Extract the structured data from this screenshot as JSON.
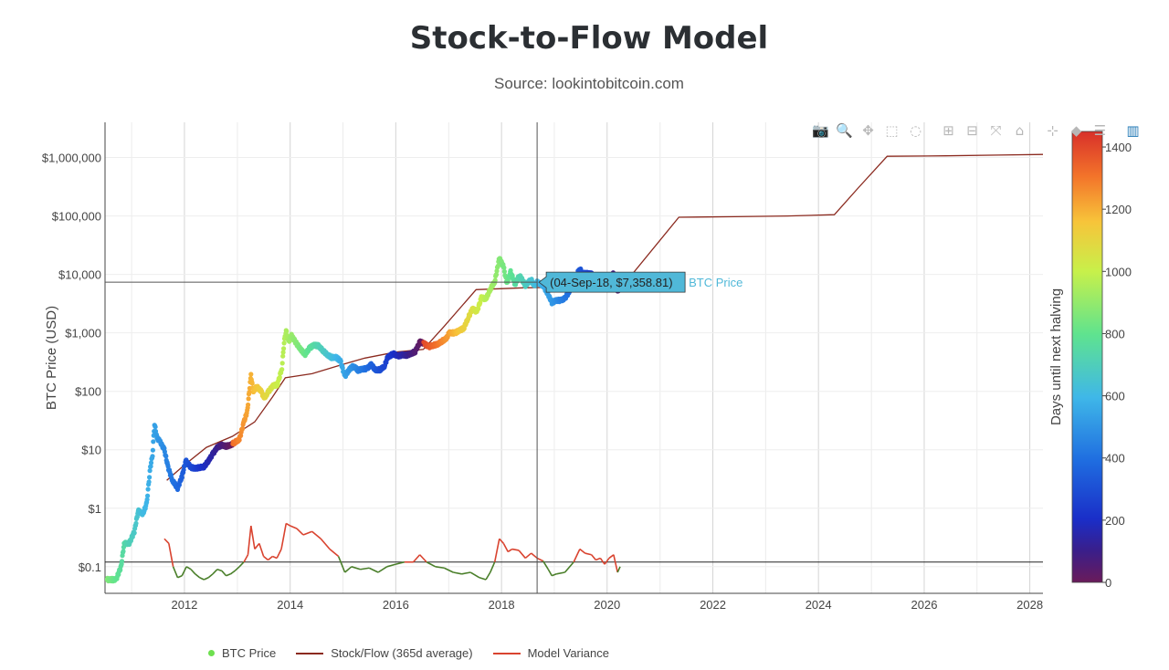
{
  "header": {
    "title": "Stock-to-Flow Model",
    "subtitle": "Source: lookintobitcoin.com"
  },
  "toolbar": [
    {
      "icon": "camera-icon",
      "label": "Download plot as png",
      "glyph": "📷"
    },
    {
      "icon": "zoom-icon",
      "label": "Zoom",
      "glyph": "🔍"
    },
    {
      "icon": "pan-icon",
      "label": "Pan",
      "glyph": "✥"
    },
    {
      "icon": "box-select-icon",
      "label": "Box Select",
      "glyph": "⬚"
    },
    {
      "icon": "lasso-select-icon",
      "label": "Lasso Select",
      "glyph": "◌"
    },
    {
      "icon": "zoom-in-icon",
      "label": "Zoom in",
      "glyph": "⊞"
    },
    {
      "icon": "zoom-out-icon",
      "label": "Zoom out",
      "glyph": "⊟"
    },
    {
      "icon": "autoscale-icon",
      "label": "Autoscale",
      "glyph": "⤧"
    },
    {
      "icon": "home-icon",
      "label": "Reset axes",
      "glyph": "⌂"
    },
    {
      "icon": "spike-lines-icon",
      "label": "Toggle Spike Lines",
      "glyph": "⊹"
    },
    {
      "icon": "hover-closest-icon",
      "label": "Show closest data on hover",
      "glyph": "◆"
    },
    {
      "icon": "hover-compare-icon",
      "label": "Compare data on hover",
      "glyph": "☰"
    },
    {
      "icon": "plotly-logo-icon",
      "label": "Produced with Plotly",
      "glyph": "▥"
    }
  ],
  "hover": {
    "text": "(04-Sep-18, $7,358.81)",
    "series_label": "BTC Price",
    "date": "2018-09-04",
    "value": 7358.81
  },
  "colors": {
    "model_line": "#8b2a1f",
    "variance_high": "#d9432f",
    "variance_low": "#4a7f2a",
    "hover_box": "#50b8d8",
    "crosshair": "#555555"
  },
  "chart_data": {
    "type": "scatter",
    "title": "Stock-to-Flow Model",
    "subtitle": "Source: lookintobitcoin.com",
    "xlabel": "",
    "ylabel": "BTC Price (USD)",
    "yscale": "log",
    "xlim": [
      "2010-07-01",
      "2028-04-01"
    ],
    "ylim": [
      0.035,
      4000000
    ],
    "x_ticks": [
      "2012",
      "2014",
      "2016",
      "2018",
      "2020",
      "2022",
      "2024",
      "2026",
      "2028"
    ],
    "y_ticks": [
      {
        "value": 1000000,
        "label": "$1,000,000"
      },
      {
        "value": 100000,
        "label": "$100,000"
      },
      {
        "value": 10000,
        "label": "$10,000"
      },
      {
        "value": 1000,
        "label": "$1,000"
      },
      {
        "value": 100,
        "label": "$100"
      },
      {
        "value": 10,
        "label": "$10"
      },
      {
        "value": 1,
        "label": "$1"
      },
      {
        "value": 0.1,
        "label": "$0.1"
      }
    ],
    "colorbar": {
      "title": "Days until next halving",
      "range": [
        0,
        1450
      ],
      "ticks": [
        0,
        200,
        400,
        600,
        800,
        1000,
        1200,
        1400
      ]
    },
    "variance_baseline": 0.12,
    "legend": [
      "BTC Price",
      "Stock/Flow (365d average)",
      "Model Variance"
    ],
    "legend_position": "bottom",
    "grid": true,
    "series": [
      {
        "name": "BTC Price",
        "kind": "markers",
        "color_by": "Days until next halving",
        "halvings": [
          "2012-11-28",
          "2016-07-09",
          "2020-05-11"
        ],
        "points": [
          [
            "2010-07-15",
            0.06
          ],
          [
            "2010-09-15",
            0.06
          ],
          [
            "2010-10-20",
            0.1
          ],
          [
            "2010-11-10",
            0.25
          ],
          [
            "2010-12-15",
            0.25
          ],
          [
            "2011-01-20",
            0.4
          ],
          [
            "2011-02-15",
            0.9
          ],
          [
            "2011-03-20",
            0.8
          ],
          [
            "2011-04-15",
            1.2
          ],
          [
            "2011-05-10",
            5
          ],
          [
            "2011-05-25",
            8
          ],
          [
            "2011-06-08",
            28
          ],
          [
            "2011-06-25",
            16
          ],
          [
            "2011-07-15",
            14
          ],
          [
            "2011-08-15",
            10
          ],
          [
            "2011-09-10",
            5
          ],
          [
            "2011-10-10",
            3
          ],
          [
            "2011-11-15",
            2.2
          ],
          [
            "2011-12-15",
            3.5
          ],
          [
            "2012-01-10",
            6.5
          ],
          [
            "2012-02-15",
            5
          ],
          [
            "2012-03-15",
            4.8
          ],
          [
            "2012-04-15",
            5
          ],
          [
            "2012-05-15",
            5.1
          ],
          [
            "2012-06-15",
            6.5
          ],
          [
            "2012-07-15",
            8.5
          ],
          [
            "2012-08-15",
            11
          ],
          [
            "2012-09-15",
            12
          ],
          [
            "2012-10-15",
            11.5
          ],
          [
            "2012-11-15",
            12
          ],
          [
            "2012-12-15",
            13.5
          ],
          [
            "2013-01-15",
            15
          ],
          [
            "2013-02-15",
            30
          ],
          [
            "2013-03-10",
            45
          ],
          [
            "2013-04-05",
            190
          ],
          [
            "2013-04-20",
            100
          ],
          [
            "2013-05-15",
            120
          ],
          [
            "2013-06-15",
            100
          ],
          [
            "2013-07-05",
            75
          ],
          [
            "2013-08-05",
            100
          ],
          [
            "2013-09-05",
            125
          ],
          [
            "2013-10-05",
            130
          ],
          [
            "2013-11-05",
            250
          ],
          [
            "2013-11-20",
            700
          ],
          [
            "2013-12-04",
            1100
          ],
          [
            "2013-12-20",
            700
          ],
          [
            "2014-01-10",
            900
          ],
          [
            "2014-02-15",
            650
          ],
          [
            "2014-03-20",
            500
          ],
          [
            "2014-04-15",
            430
          ],
          [
            "2014-05-15",
            550
          ],
          [
            "2014-06-15",
            620
          ],
          [
            "2014-07-15",
            600
          ],
          [
            "2014-08-15",
            500
          ],
          [
            "2014-09-15",
            420
          ],
          [
            "2014-10-15",
            380
          ],
          [
            "2014-11-15",
            380
          ],
          [
            "2014-12-15",
            330
          ],
          [
            "2015-01-14",
            180
          ],
          [
            "2015-02-15",
            240
          ],
          [
            "2015-03-15",
            270
          ],
          [
            "2015-04-15",
            230
          ],
          [
            "2015-05-15",
            240
          ],
          [
            "2015-06-15",
            245
          ],
          [
            "2015-07-15",
            285
          ],
          [
            "2015-08-15",
            230
          ],
          [
            "2015-09-15",
            235
          ],
          [
            "2015-10-15",
            270
          ],
          [
            "2015-11-05",
            380
          ],
          [
            "2015-12-15",
            440
          ],
          [
            "2016-01-15",
            400
          ],
          [
            "2016-02-15",
            420
          ],
          [
            "2016-03-15",
            415
          ],
          [
            "2016-04-15",
            440
          ],
          [
            "2016-05-15",
            480
          ],
          [
            "2016-06-15",
            700
          ],
          [
            "2016-07-15",
            660
          ],
          [
            "2016-08-15",
            580
          ],
          [
            "2016-09-15",
            610
          ],
          [
            "2016-10-15",
            640
          ],
          [
            "2016-11-15",
            720
          ],
          [
            "2016-12-15",
            800
          ],
          [
            "2017-01-05",
            1000
          ],
          [
            "2017-02-15",
            1000
          ],
          [
            "2017-03-15",
            1100
          ],
          [
            "2017-04-15",
            1200
          ],
          [
            "2017-05-15",
            1800
          ],
          [
            "2017-06-15",
            2600
          ],
          [
            "2017-07-15",
            2300
          ],
          [
            "2017-08-15",
            4000
          ],
          [
            "2017-09-15",
            3800
          ],
          [
            "2017-10-15",
            5600
          ],
          [
            "2017-11-15",
            7500
          ],
          [
            "2017-12-17",
            19000
          ],
          [
            "2018-01-15",
            13500
          ],
          [
            "2018-02-06",
            7000
          ],
          [
            "2018-03-05",
            11000
          ],
          [
            "2018-04-05",
            6800
          ],
          [
            "2018-05-05",
            9700
          ],
          [
            "2018-06-15",
            6500
          ],
          [
            "2018-07-25",
            8200
          ],
          [
            "2018-08-15",
            6300
          ],
          [
            "2018-09-04",
            7358.81
          ],
          [
            "2018-10-15",
            6500
          ],
          [
            "2018-11-20",
            4500
          ],
          [
            "2018-12-15",
            3300
          ],
          [
            "2019-01-15",
            3600
          ],
          [
            "2019-02-15",
            3600
          ],
          [
            "2019-03-15",
            3900
          ],
          [
            "2019-04-15",
            5100
          ],
          [
            "2019-05-15",
            7800
          ],
          [
            "2019-06-26",
            12500
          ],
          [
            "2019-07-15",
            10500
          ],
          [
            "2019-08-15",
            10300
          ],
          [
            "2019-09-15",
            10200
          ],
          [
            "2019-10-15",
            8300
          ],
          [
            "2019-11-15",
            8600
          ],
          [
            "2019-12-15",
            7100
          ],
          [
            "2020-01-15",
            8800
          ],
          [
            "2020-02-15",
            10300
          ],
          [
            "2020-03-13",
            5000
          ],
          [
            "2020-03-31",
            6400
          ]
        ]
      },
      {
        "name": "Stock/Flow (365d average)",
        "kind": "line",
        "points": [
          [
            "2011-09-01",
            3
          ],
          [
            "2012-01-01",
            5.5
          ],
          [
            "2012-06-01",
            11
          ],
          [
            "2012-11-28",
            17
          ],
          [
            "2013-05-01",
            30
          ],
          [
            "2013-09-01",
            80
          ],
          [
            "2013-11-28",
            170
          ],
          [
            "2014-06-01",
            200
          ],
          [
            "2015-01-01",
            290
          ],
          [
            "2015-06-01",
            370
          ],
          [
            "2016-01-01",
            470
          ],
          [
            "2016-07-09",
            520
          ],
          [
            "2016-12-01",
            1300
          ],
          [
            "2017-07-09",
            5500
          ],
          [
            "2018-06-01",
            5900
          ],
          [
            "2019-06-01",
            6100
          ],
          [
            "2020-05-11",
            7500
          ],
          [
            "2021-05-11",
            95000
          ],
          [
            "2022-06-01",
            97000
          ],
          [
            "2023-06-01",
            100000
          ],
          [
            "2024-04-20",
            105000
          ],
          [
            "2024-10-01",
            300000
          ],
          [
            "2025-04-20",
            1050000
          ],
          [
            "2026-06-01",
            1070000
          ],
          [
            "2027-06-01",
            1100000
          ],
          [
            "2028-04-01",
            1130000
          ]
        ]
      },
      {
        "name": "Model Variance",
        "kind": "line",
        "baseline": 0.12,
        "points": [
          [
            "2011-08-15",
            0.3
          ],
          [
            "2011-09-15",
            0.25
          ],
          [
            "2011-10-15",
            0.1
          ],
          [
            "2011-11-15",
            0.065
          ],
          [
            "2011-12-15",
            0.07
          ],
          [
            "2012-01-15",
            0.1
          ],
          [
            "2012-02-15",
            0.09
          ],
          [
            "2012-03-15",
            0.075
          ],
          [
            "2012-04-15",
            0.065
          ],
          [
            "2012-05-15",
            0.06
          ],
          [
            "2012-06-15",
            0.065
          ],
          [
            "2012-07-15",
            0.075
          ],
          [
            "2012-08-15",
            0.09
          ],
          [
            "2012-09-15",
            0.085
          ],
          [
            "2012-10-15",
            0.07
          ],
          [
            "2012-11-15",
            0.075
          ],
          [
            "2012-12-15",
            0.085
          ],
          [
            "2013-01-15",
            0.1
          ],
          [
            "2013-02-15",
            0.12
          ],
          [
            "2013-03-15",
            0.16
          ],
          [
            "2013-04-05",
            0.5
          ],
          [
            "2013-05-01",
            0.2
          ],
          [
            "2013-06-01",
            0.25
          ],
          [
            "2013-07-01",
            0.15
          ],
          [
            "2013-08-01",
            0.13
          ],
          [
            "2013-09-01",
            0.15
          ],
          [
            "2013-10-01",
            0.14
          ],
          [
            "2013-11-01",
            0.2
          ],
          [
            "2013-12-04",
            0.55
          ],
          [
            "2014-01-01",
            0.5
          ],
          [
            "2014-02-15",
            0.45
          ],
          [
            "2014-04-01",
            0.35
          ],
          [
            "2014-06-01",
            0.4
          ],
          [
            "2014-08-01",
            0.3
          ],
          [
            "2014-10-01",
            0.2
          ],
          [
            "2014-12-01",
            0.15
          ],
          [
            "2015-01-14",
            0.08
          ],
          [
            "2015-03-01",
            0.1
          ],
          [
            "2015-05-01",
            0.09
          ],
          [
            "2015-07-01",
            0.095
          ],
          [
            "2015-09-01",
            0.08
          ],
          [
            "2015-11-01",
            0.1
          ],
          [
            "2016-01-01",
            0.11
          ],
          [
            "2016-03-01",
            0.12
          ],
          [
            "2016-05-01",
            0.12
          ],
          [
            "2016-06-15",
            0.16
          ],
          [
            "2016-08-01",
            0.12
          ],
          [
            "2016-10-01",
            0.1
          ],
          [
            "2016-12-01",
            0.095
          ],
          [
            "2017-02-01",
            0.08
          ],
          [
            "2017-04-01",
            0.075
          ],
          [
            "2017-06-01",
            0.08
          ],
          [
            "2017-08-01",
            0.065
          ],
          [
            "2017-09-15",
            0.06
          ],
          [
            "2017-10-15",
            0.08
          ],
          [
            "2017-11-15",
            0.12
          ],
          [
            "2017-12-17",
            0.3
          ],
          [
            "2018-01-15",
            0.25
          ],
          [
            "2018-02-15",
            0.18
          ],
          [
            "2018-03-15",
            0.2
          ],
          [
            "2018-05-01",
            0.19
          ],
          [
            "2018-06-15",
            0.14
          ],
          [
            "2018-07-25",
            0.17
          ],
          [
            "2018-09-04",
            0.14
          ],
          [
            "2018-10-15",
            0.125
          ],
          [
            "2018-11-20",
            0.09
          ],
          [
            "2018-12-15",
            0.07
          ],
          [
            "2019-01-15",
            0.075
          ],
          [
            "2019-03-15",
            0.08
          ],
          [
            "2019-05-15",
            0.12
          ],
          [
            "2019-06-26",
            0.2
          ],
          [
            "2019-08-01",
            0.17
          ],
          [
            "2019-09-15",
            0.16
          ],
          [
            "2019-10-15",
            0.13
          ],
          [
            "2019-11-15",
            0.14
          ],
          [
            "2019-12-15",
            0.11
          ],
          [
            "2020-01-15",
            0.14
          ],
          [
            "2020-02-15",
            0.16
          ],
          [
            "2020-03-13",
            0.08
          ],
          [
            "2020-03-31",
            0.1
          ]
        ]
      }
    ]
  }
}
